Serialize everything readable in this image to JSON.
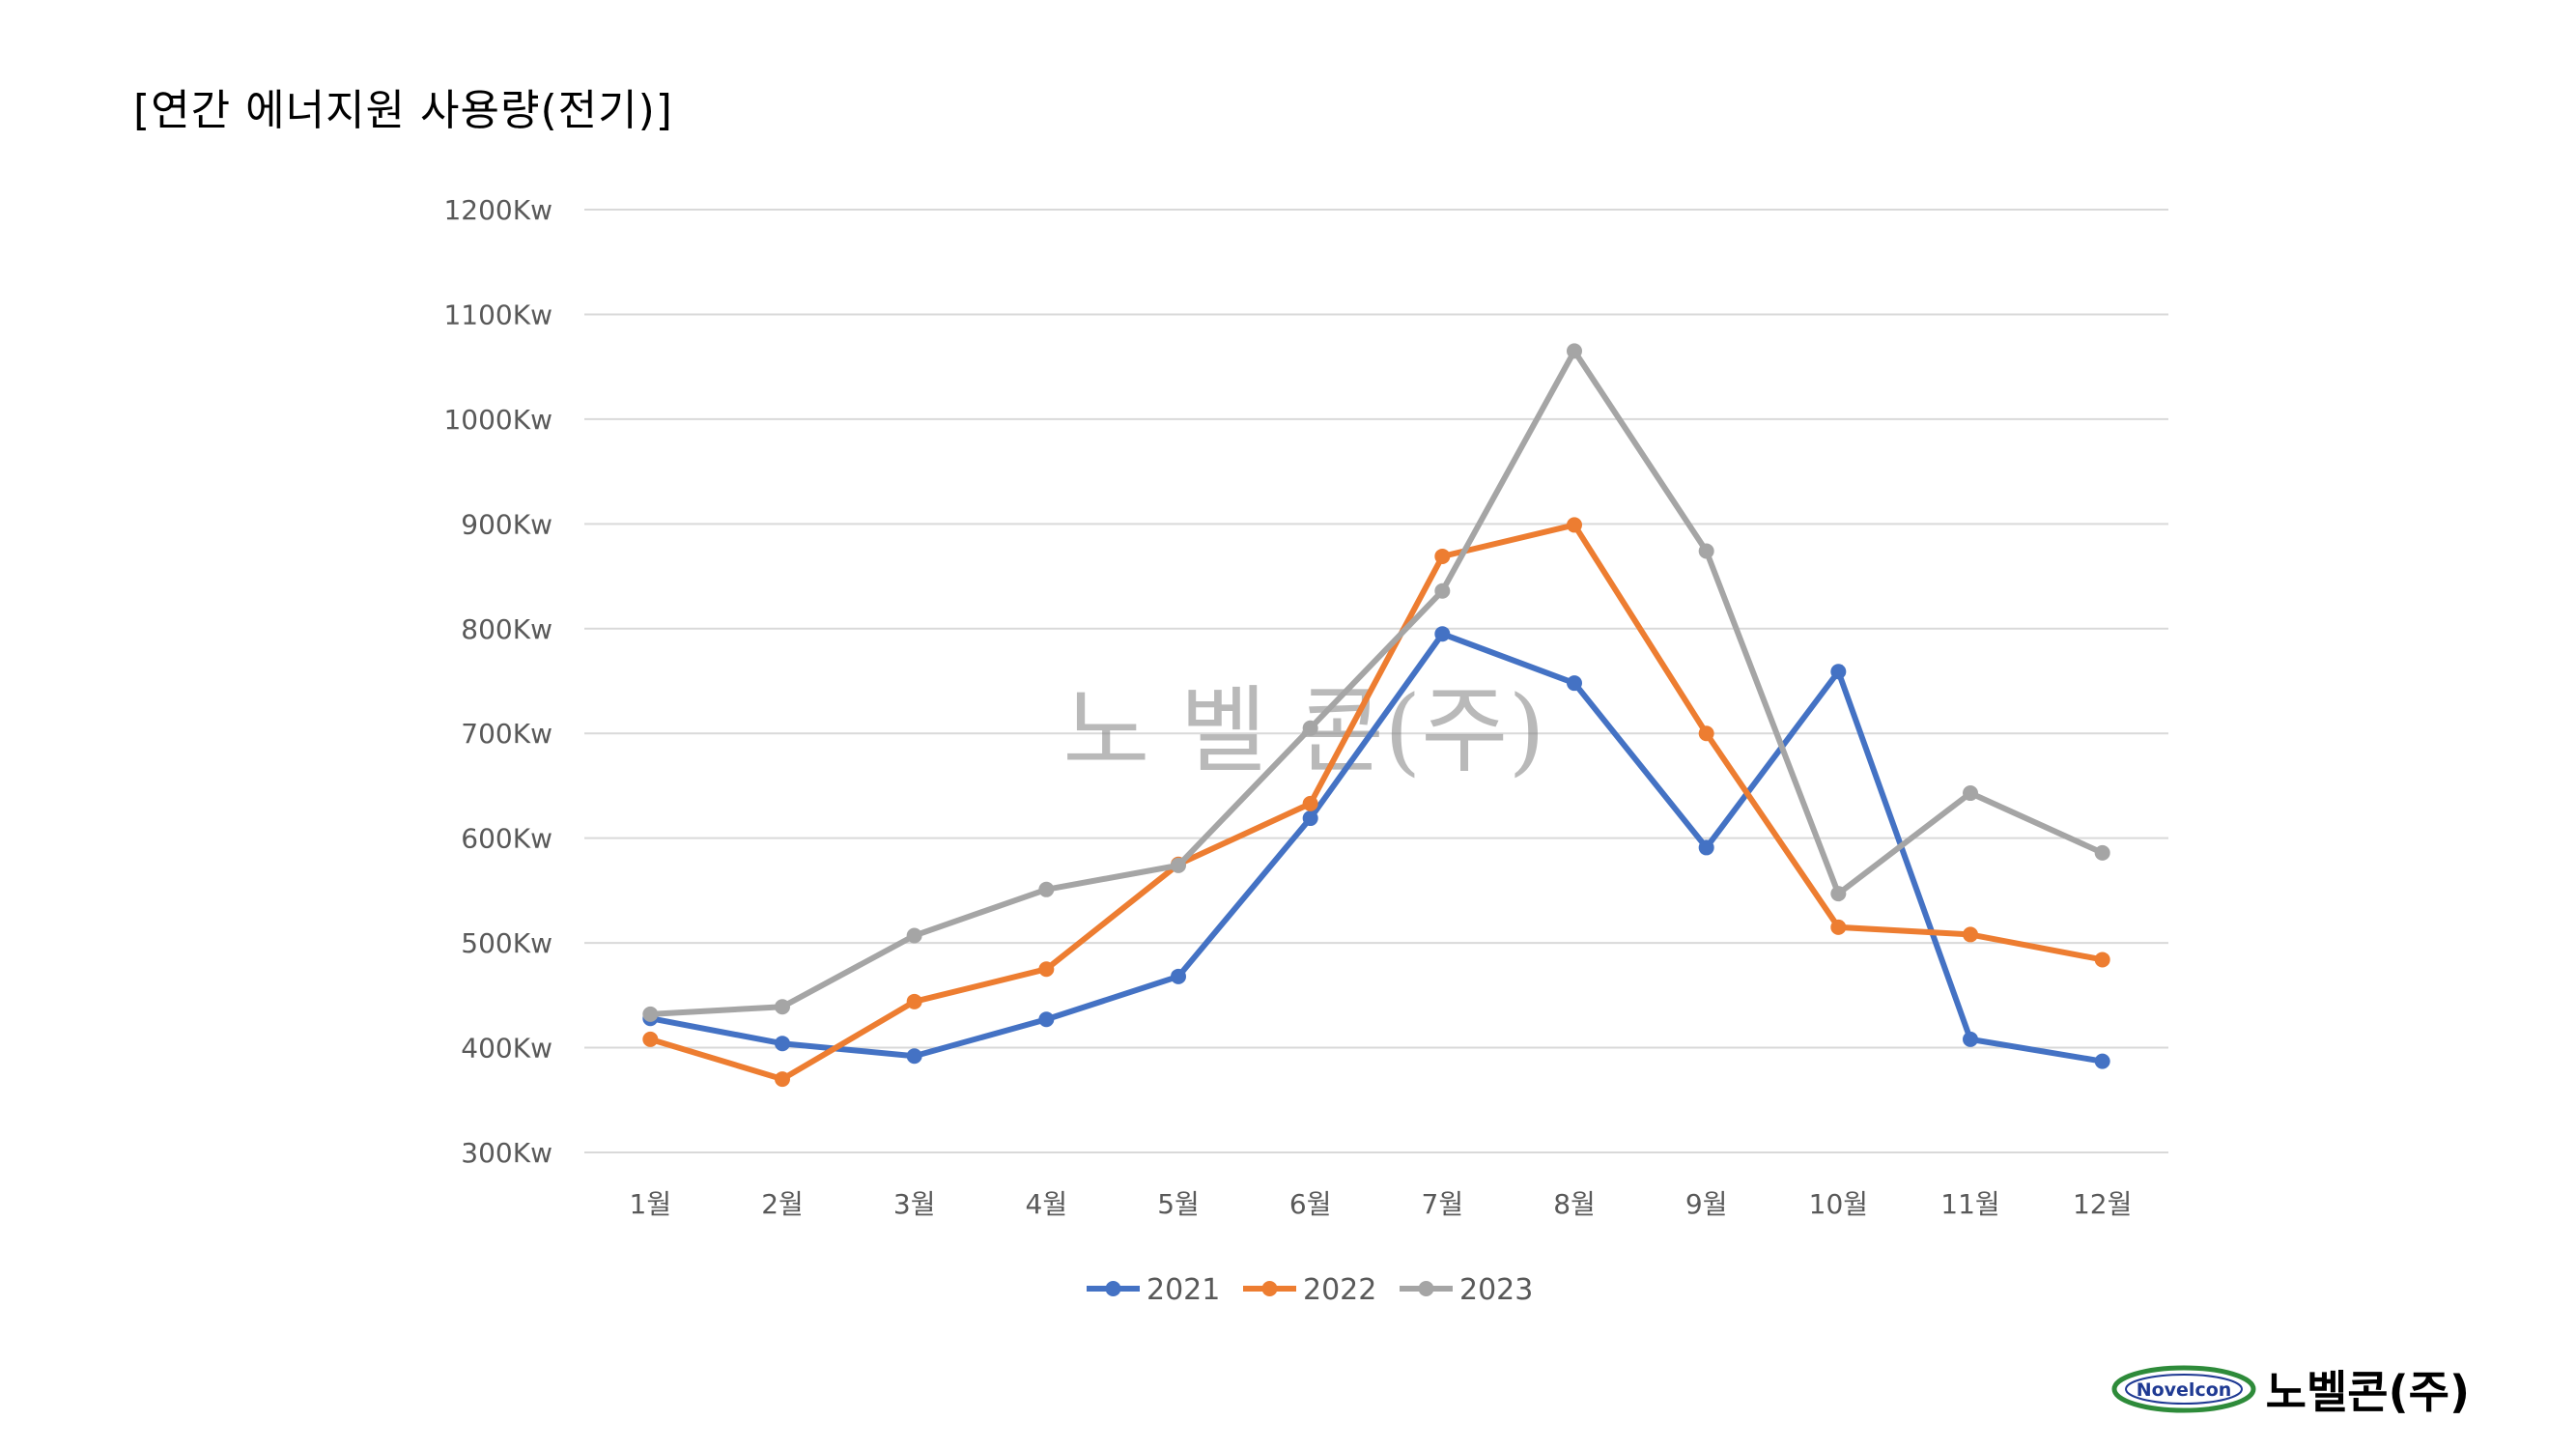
{
  "page": {
    "title": "[연간 에너지원 사용량(전기)]",
    "watermark": "노 벨 콘(주)",
    "logo_badge_text": "Novelcon",
    "logo_text": "노벨콘(주)"
  },
  "chart_data": {
    "type": "line",
    "categories": [
      "1월",
      "2월",
      "3월",
      "4월",
      "5월",
      "6월",
      "7월",
      "8월",
      "9월",
      "10월",
      "11월",
      "12월"
    ],
    "y_ticks": [
      "300Kw",
      "400Kw",
      "500Kw",
      "600Kw",
      "700Kw",
      "800Kw",
      "900Kw",
      "1000Kw",
      "1100Kw",
      "1200Kw"
    ],
    "ylim": [
      300,
      1200
    ],
    "grid": true,
    "legend_position": "bottom",
    "series": [
      {
        "name": "2021",
        "color": "#4472C4",
        "values": [
          428,
          404,
          392,
          427,
          468,
          619,
          795,
          748,
          591,
          759,
          408,
          387
        ]
      },
      {
        "name": "2022",
        "color": "#ED7D31",
        "values": [
          408,
          370,
          444,
          475,
          575,
          633,
          869,
          899,
          700,
          515,
          508,
          484
        ]
      },
      {
        "name": "2023",
        "color": "#A5A5A5",
        "values": [
          432,
          439,
          507,
          551,
          574,
          705,
          836,
          1065,
          874,
          547,
          643,
          586
        ]
      }
    ]
  },
  "colors": {
    "gridline": "#D9D9D9",
    "axis_text": "#595959",
    "logo_green": "#2E8B3A",
    "logo_blue": "#1F3A93"
  }
}
